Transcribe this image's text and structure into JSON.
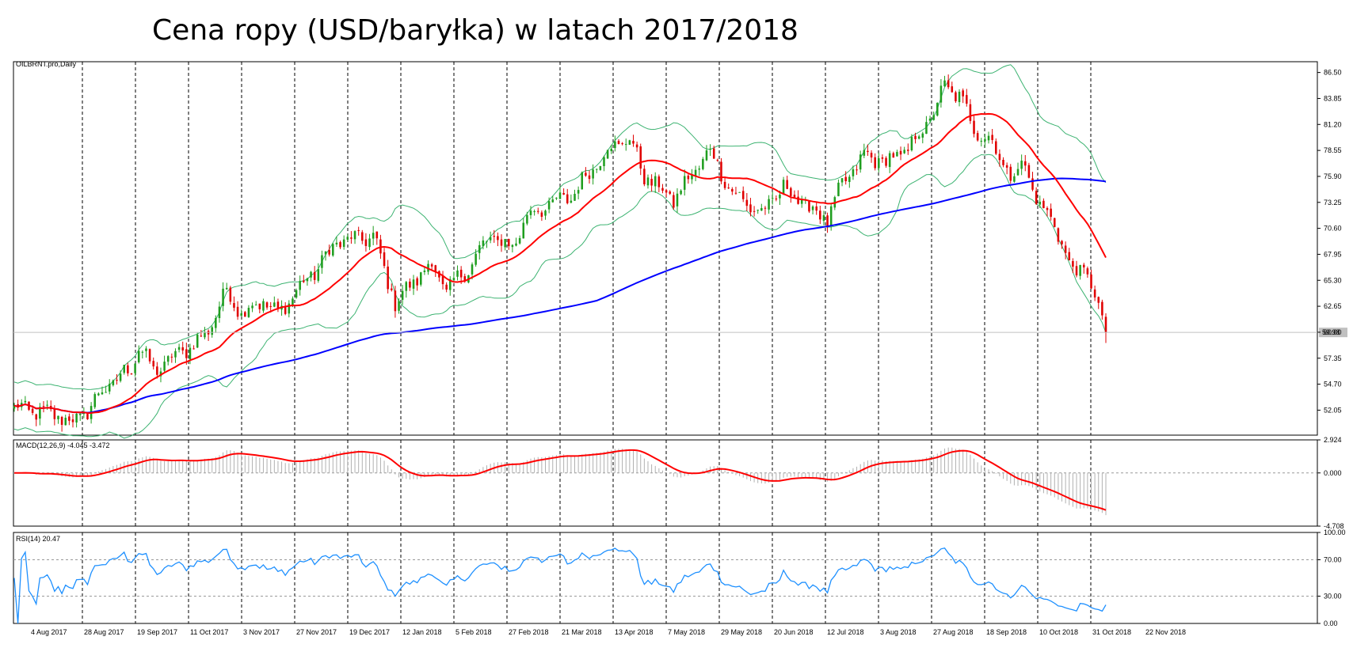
{
  "title": "Cena ropy (USD/baryłka) w latach 2017/2018",
  "chart_data": [
    {
      "type": "candlestick",
      "label": "OILBRNT.pro,Daily",
      "ylim": [
        49.5,
        87.6
      ],
      "yticks": [
        "86.50",
        "83.85",
        "81.20",
        "78.55",
        "75.90",
        "73.25",
        "70.60",
        "67.95",
        "65.30",
        "62.65",
        "60.00",
        "57.35",
        "54.70",
        "52.05"
      ],
      "current_price": "59.98",
      "x_labels": [
        "4 Aug 2017",
        "28 Aug 2017",
        "19 Sep 2017",
        "11 Oct 2017",
        "3 Nov 2017",
        "27 Nov 2017",
        "19 Dec 2017",
        "12 Jan 2018",
        "5 Feb 2018",
        "27 Feb 2018",
        "21 Mar 2018",
        "13 Apr 2018",
        "7 May 2018",
        "29 May 2018",
        "20 Jun 2018",
        "12 Jul 2018",
        "3 Aug 2018",
        "27 Aug 2018",
        "18 Sep 2018",
        "10 Oct 2018",
        "31 Oct 2018",
        "22 Nov 2018"
      ],
      "close_keypoints": [
        [
          0,
          52.3
        ],
        [
          12,
          51.5
        ],
        [
          16,
          50.8
        ],
        [
          20,
          52.0
        ],
        [
          24,
          54.0
        ],
        [
          32,
          56.4
        ],
        [
          34,
          58.6
        ],
        [
          38,
          56.0
        ],
        [
          44,
          57.6
        ],
        [
          52,
          59.6
        ],
        [
          58,
          64.2
        ],
        [
          62,
          62.0
        ],
        [
          68,
          63.2
        ],
        [
          72,
          61.8
        ],
        [
          76,
          63.8
        ],
        [
          82,
          66.2
        ],
        [
          88,
          69.2
        ],
        [
          98,
          69.8
        ],
        [
          104,
          63.0
        ],
        [
          110,
          65.6
        ],
        [
          114,
          67.0
        ],
        [
          118,
          64.2
        ],
        [
          124,
          66.6
        ],
        [
          130,
          69.8
        ],
        [
          136,
          68.6
        ],
        [
          140,
          72.0
        ],
        [
          152,
          73.9
        ],
        [
          162,
          78.7
        ],
        [
          168,
          79.8
        ],
        [
          172,
          76.0
        ],
        [
          180,
          73.5
        ],
        [
          186,
          76.6
        ],
        [
          190,
          78.6
        ],
        [
          196,
          74.2
        ],
        [
          204,
          72.1
        ],
        [
          210,
          74.8
        ],
        [
          216,
          73.0
        ],
        [
          222,
          71.5
        ],
        [
          226,
          75.0
        ],
        [
          232,
          78.0
        ],
        [
          238,
          77.4
        ],
        [
          244,
          78.6
        ],
        [
          250,
          81.8
        ],
        [
          254,
          85.0
        ],
        [
          258,
          84.2
        ],
        [
          262,
          80.8
        ],
        [
          266,
          79.8
        ],
        [
          272,
          76.0
        ],
        [
          276,
          77.1
        ],
        [
          280,
          72.6
        ],
        [
          284,
          71.4
        ],
        [
          288,
          66.5
        ],
        [
          292,
          66.6
        ],
        [
          296,
          62.5
        ],
        [
          298,
          59.98
        ]
      ],
      "ma_fast_color": "#ff0000",
      "ma_slow_color": "#0000ff",
      "bands_color": "#3cb371",
      "bull_color": "#1f9e1f",
      "bear_color": "#e00000"
    },
    {
      "type": "line",
      "label": "MACD(12,26,9) -4.045 -3.472",
      "yticks": [
        "2.924",
        "0.000",
        "-4.708"
      ],
      "ylim": [
        -4.708,
        2.924
      ],
      "signal_color": "#ff0000",
      "hist_color": "#b0b0b0"
    },
    {
      "type": "line",
      "label": "RSI(14) 20.47",
      "yticks": [
        "100.00",
        "70.00",
        "30.00",
        "0.00"
      ],
      "ylim": [
        0,
        100
      ],
      "line_color": "#1e90ff"
    }
  ]
}
